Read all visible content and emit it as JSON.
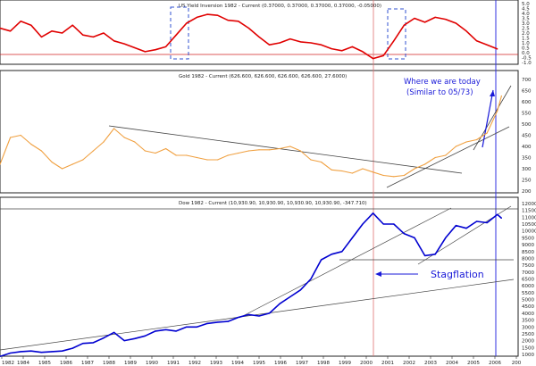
{
  "chart_data": [
    {
      "type": "line",
      "title": "US Yield Inversion 1982 - Current (0.37000, 0.37000, 0.37000, 0.37000, -0.05000)",
      "ylim": [
        -1.0,
        5.0
      ],
      "y_ticks": [
        "5.0",
        "4.5",
        "4.0",
        "3.5",
        "3.0",
        "2.5",
        "2.0",
        "1.5",
        "1.0",
        "0.5",
        "0.0",
        "-0.5",
        "-1.0"
      ],
      "colors": {
        "series": "#e00000"
      },
      "series": [
        {
          "x": [
            1982.0,
            1982.5,
            1983.0,
            1983.5,
            1984.0,
            1984.5,
            1985.0,
            1985.5,
            1986.0,
            1986.5,
            1987.0,
            1987.5,
            1988.0,
            1988.5,
            1989.0,
            1989.5,
            1990.0,
            1990.5,
            1991.0,
            1991.5,
            1992.0,
            1992.5,
            1993.0,
            1993.5,
            1994.0,
            1994.5,
            1995.0,
            1995.5,
            1996.0,
            1996.5,
            1997.0,
            1997.5,
            1998.0,
            1998.5,
            1999.0,
            1999.5,
            2000.0,
            2000.5,
            2001.0,
            2001.5,
            2002.0,
            2002.5,
            2003.0,
            2003.5,
            2004.0,
            2004.5,
            2005.0,
            2005.5,
            2006.0
          ],
          "values": [
            2.5,
            2.2,
            3.2,
            2.8,
            1.6,
            2.2,
            2.0,
            2.8,
            1.8,
            1.6,
            2.0,
            1.2,
            0.9,
            0.5,
            0.1,
            0.3,
            0.6,
            1.8,
            3.0,
            3.6,
            3.9,
            3.8,
            3.3,
            3.2,
            2.5,
            1.6,
            0.8,
            1.0,
            1.4,
            1.1,
            1.0,
            0.8,
            0.4,
            0.2,
            0.6,
            0.1,
            -0.6,
            -0.3,
            1.2,
            2.8,
            3.5,
            3.1,
            3.6,
            3.4,
            3.0,
            2.2,
            1.2,
            0.8,
            0.37
          ]
        }
      ]
    },
    {
      "type": "line",
      "title": "Gold 1982 - Current (626.600, 626.600, 626.600, 626.600, 27.6000)",
      "ylim": [
        200,
        700
      ],
      "y_ticks": [
        "700",
        "650",
        "600",
        "550",
        "500",
        "450",
        "400",
        "350",
        "300",
        "250",
        "200"
      ],
      "colors": {
        "series": "#f0a040"
      },
      "annotations": [
        "Where we are today",
        "(Similar to 05/73)"
      ],
      "series": [
        {
          "x": [
            1982.0,
            1982.5,
            1983.0,
            1983.5,
            1984.0,
            1984.5,
            1985.0,
            1985.5,
            1986.0,
            1986.5,
            1987.0,
            1987.5,
            1988.0,
            1988.5,
            1989.0,
            1989.5,
            1990.0,
            1990.5,
            1991.0,
            1991.5,
            1992.0,
            1992.5,
            1993.0,
            1993.5,
            1994.0,
            1994.5,
            1995.0,
            1995.5,
            1996.0,
            1996.5,
            1997.0,
            1997.5,
            1998.0,
            1998.5,
            1999.0,
            1999.5,
            2000.0,
            2000.5,
            2001.0,
            2001.5,
            2002.0,
            2002.5,
            2003.0,
            2003.5,
            2004.0,
            2004.5,
            2005.0,
            2005.5,
            2006.0,
            2006.2
          ],
          "values": [
            320,
            440,
            450,
            410,
            380,
            330,
            300,
            320,
            340,
            380,
            420,
            480,
            440,
            420,
            380,
            370,
            390,
            360,
            360,
            350,
            340,
            340,
            360,
            370,
            380,
            385,
            385,
            390,
            400,
            380,
            340,
            330,
            295,
            290,
            280,
            300,
            285,
            270,
            265,
            270,
            300,
            320,
            350,
            360,
            400,
            420,
            430,
            460,
            560,
            626
          ]
        }
      ]
    },
    {
      "type": "line",
      "title": "Dow 1982 - Current (10,930.90, 10,930.90, 10,930.90, 10,930.90, -347.710)",
      "ylim": [
        1000,
        12000
      ],
      "y_ticks": [
        "12000",
        "11500",
        "11000",
        "10500",
        "10000",
        "9500",
        "9000",
        "8500",
        "8000",
        "7500",
        "7000",
        "6500",
        "6000",
        "5500",
        "5000",
        "4500",
        "4000",
        "3500",
        "3000",
        "2500",
        "2000",
        "1500",
        "1000"
      ],
      "colors": {
        "series": "#0000d0"
      },
      "annotations": [
        "Stagflation"
      ],
      "series": [
        {
          "x": [
            1982.0,
            1982.5,
            1983.0,
            1983.5,
            1984.0,
            1984.5,
            1985.0,
            1985.5,
            1986.0,
            1986.5,
            1987.0,
            1987.5,
            1988.0,
            1988.5,
            1989.0,
            1989.5,
            1990.0,
            1990.5,
            1991.0,
            1991.5,
            1992.0,
            1992.5,
            1993.0,
            1993.5,
            1994.0,
            1994.5,
            1995.0,
            1995.5,
            1996.0,
            1996.5,
            1997.0,
            1997.5,
            1998.0,
            1998.5,
            1999.0,
            1999.5,
            2000.0,
            2000.5,
            2001.0,
            2001.5,
            2002.0,
            2002.5,
            2003.0,
            2003.5,
            2004.0,
            2004.5,
            2005.0,
            2005.5,
            2006.0,
            2006.2
          ],
          "values": [
            850,
            1100,
            1200,
            1250,
            1150,
            1200,
            1250,
            1450,
            1800,
            1850,
            2200,
            2600,
            2000,
            2150,
            2350,
            2700,
            2800,
            2700,
            3000,
            3000,
            3250,
            3350,
            3400,
            3700,
            3900,
            3800,
            4000,
            4700,
            5200,
            5700,
            6500,
            7900,
            8300,
            8500,
            9500,
            10500,
            11300,
            10500,
            10500,
            9800,
            9500,
            8200,
            8300,
            9500,
            10400,
            10200,
            10700,
            10600,
            11200,
            10930
          ]
        }
      ]
    }
  ],
  "x_axis": {
    "labels": [
      "1982",
      "1984",
      "1985",
      "1986",
      "1987",
      "1988",
      "1989",
      "1990",
      "1991",
      "1992",
      "1993",
      "1994",
      "1995",
      "1996",
      "1997",
      "1998",
      "1999",
      "2000",
      "2001",
      "2002",
      "2003",
      "2004",
      "2005",
      "2006",
      "200"
    ]
  }
}
